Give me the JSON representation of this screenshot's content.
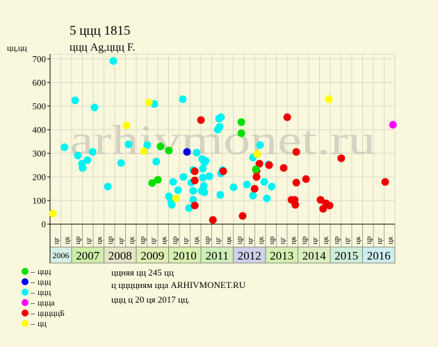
{
  "page": {
    "background": "#f9f8dd"
  },
  "chart_data": {
    "type": "scatter",
    "title": "5 ццц 1815",
    "subtitle": "ццц Ag,ццц F.",
    "ylabel": "цц,цц",
    "ylim": [
      0,
      720
    ],
    "yticks": [
      0,
      100,
      200,
      300,
      400,
      500,
      600,
      700
    ],
    "xlim": [
      2006.3333,
      2017
    ],
    "grid": true,
    "watermark": "arhivmonet.ru",
    "legend_position": "bottom-left",
    "legend_dash": "–",
    "period_labels": [
      "цг",
      "цк",
      "цр",
      "цг",
      "цк",
      "цр",
      "цг",
      "цк",
      "цр",
      "цг",
      "цк",
      "цр",
      "цг",
      "цк",
      "цр",
      "цг",
      "цк",
      "цр",
      "цг",
      "цк",
      "цр",
      "цг",
      "цк",
      "цр",
      "цг",
      "цк",
      "цр",
      "цг",
      "цк",
      "цр",
      "цг",
      "цк"
    ],
    "years": [
      {
        "label": "2006",
        "color": "#d4efe6"
      },
      {
        "label": "2007",
        "color": "#cdefa8"
      },
      {
        "label": "2008",
        "color": "#e6e4c6"
      },
      {
        "label": "2009",
        "color": "#dff0b4"
      },
      {
        "label": "2010",
        "color": "#d6f0b0"
      },
      {
        "label": "2011",
        "color": "#cdeeb8"
      },
      {
        "label": "2012",
        "color": "#cfd0ea"
      },
      {
        "label": "2013",
        "color": "#d4efb0"
      },
      {
        "label": "2014",
        "color": "#dcefc0"
      },
      {
        "label": "2015",
        "color": "#cdeed8"
      },
      {
        "label": "2016",
        "color": "#cdeef0"
      }
    ],
    "series": [
      {
        "name": "ццц",
        "color": "#00e000",
        "points": [
          [
            2009.49,
            174
          ],
          [
            2009.67,
            188
          ],
          [
            2009.75,
            329
          ],
          [
            2010.01,
            312
          ],
          [
            2012.25,
            432
          ],
          [
            2012.25,
            385
          ],
          [
            2012.7,
            232
          ]
        ]
      },
      {
        "name": "ццц",
        "color": "#0000ee",
        "points": [
          [
            2010.57,
            306
          ]
        ]
      },
      {
        "name": "ццц",
        "color": "#00f2f2",
        "points": [
          [
            2006.78,
            326
          ],
          [
            2007.11,
            524
          ],
          [
            2007.19,
            291
          ],
          [
            2007.32,
            256
          ],
          [
            2007.34,
            238
          ],
          [
            2007.49,
            271
          ],
          [
            2007.65,
            306
          ],
          [
            2007.71,
            494
          ],
          [
            2008.12,
            159
          ],
          [
            2008.29,
            691
          ],
          [
            2008.53,
            259
          ],
          [
            2008.76,
            338
          ],
          [
            2009.34,
            335
          ],
          [
            2009.56,
            509
          ],
          [
            2009.62,
            265
          ],
          [
            2010.01,
            118
          ],
          [
            2010.08,
            94
          ],
          [
            2010.1,
            82
          ],
          [
            2010.14,
            179
          ],
          [
            2010.29,
            144
          ],
          [
            2010.44,
            529
          ],
          [
            2010.46,
            200
          ],
          [
            2010.63,
            68
          ],
          [
            2010.7,
            176
          ],
          [
            2010.76,
            229
          ],
          [
            2010.76,
            141
          ],
          [
            2010.76,
            103
          ],
          [
            2010.87,
            303
          ],
          [
            2011.02,
            141
          ],
          [
            2011.04,
            276
          ],
          [
            2011.06,
            235
          ],
          [
            2011.06,
            197
          ],
          [
            2011.09,
            162
          ],
          [
            2011.11,
            135
          ],
          [
            2011.11,
            262
          ],
          [
            2011.15,
            268
          ],
          [
            2011.26,
            203
          ],
          [
            2011.52,
            400
          ],
          [
            2011.56,
            447
          ],
          [
            2011.62,
            453
          ],
          [
            2011.58,
            412
          ],
          [
            2011.6,
            124
          ],
          [
            2011.62,
            215
          ],
          [
            2011.67,
            229
          ],
          [
            2012.01,
            156
          ],
          [
            2012.42,
            168
          ],
          [
            2012.61,
            282
          ],
          [
            2012.61,
            121
          ],
          [
            2012.83,
            335
          ],
          [
            2012.96,
            179
          ],
          [
            2013.04,
            109
          ],
          [
            2013.09,
            253
          ],
          [
            2013.19,
            159
          ]
        ]
      },
      {
        "name": "ццца",
        "color": "#ff00ff",
        "points": [
          [
            2016.94,
            421
          ]
        ]
      },
      {
        "name": "цццццБ",
        "color": "#ee0000",
        "points": [
          [
            2011.0,
            441
          ],
          [
            2010.81,
            224
          ],
          [
            2010.81,
            185
          ],
          [
            2010.81,
            79
          ],
          [
            2011.37,
            18
          ],
          [
            2011.69,
            224
          ],
          [
            2012.29,
            35
          ],
          [
            2012.66,
            150
          ],
          [
            2012.72,
            200
          ],
          [
            2012.72,
            226
          ],
          [
            2012.81,
            256
          ],
          [
            2013.11,
            250
          ],
          [
            2013.56,
            238
          ],
          [
            2013.67,
            453
          ],
          [
            2013.8,
            103
          ],
          [
            2013.9,
            103
          ],
          [
            2013.92,
            82
          ],
          [
            2013.95,
            176
          ],
          [
            2013.95,
            306
          ],
          [
            2014.25,
            191
          ],
          [
            2014.7,
            103
          ],
          [
            2014.78,
            65
          ],
          [
            2014.87,
            88
          ],
          [
            2014.98,
            79
          ],
          [
            2015.34,
            279
          ],
          [
            2016.7,
            179
          ]
        ]
      },
      {
        "name": "цц",
        "color": "#ffff00",
        "points": [
          [
            2006.42,
            45
          ],
          [
            2008.7,
            418
          ],
          [
            2009.24,
            309
          ],
          [
            2009.39,
            515
          ],
          [
            2010.23,
            109
          ],
          [
            2012.74,
            297
          ],
          [
            2014.96,
            529
          ]
        ]
      }
    ]
  },
  "info": {
    "lines": [
      "ццняя цц 245 цц",
      "ц цццциям цца ARHIVMONET.RU",
      "ццц ц 20 ця 2017 цц."
    ]
  }
}
